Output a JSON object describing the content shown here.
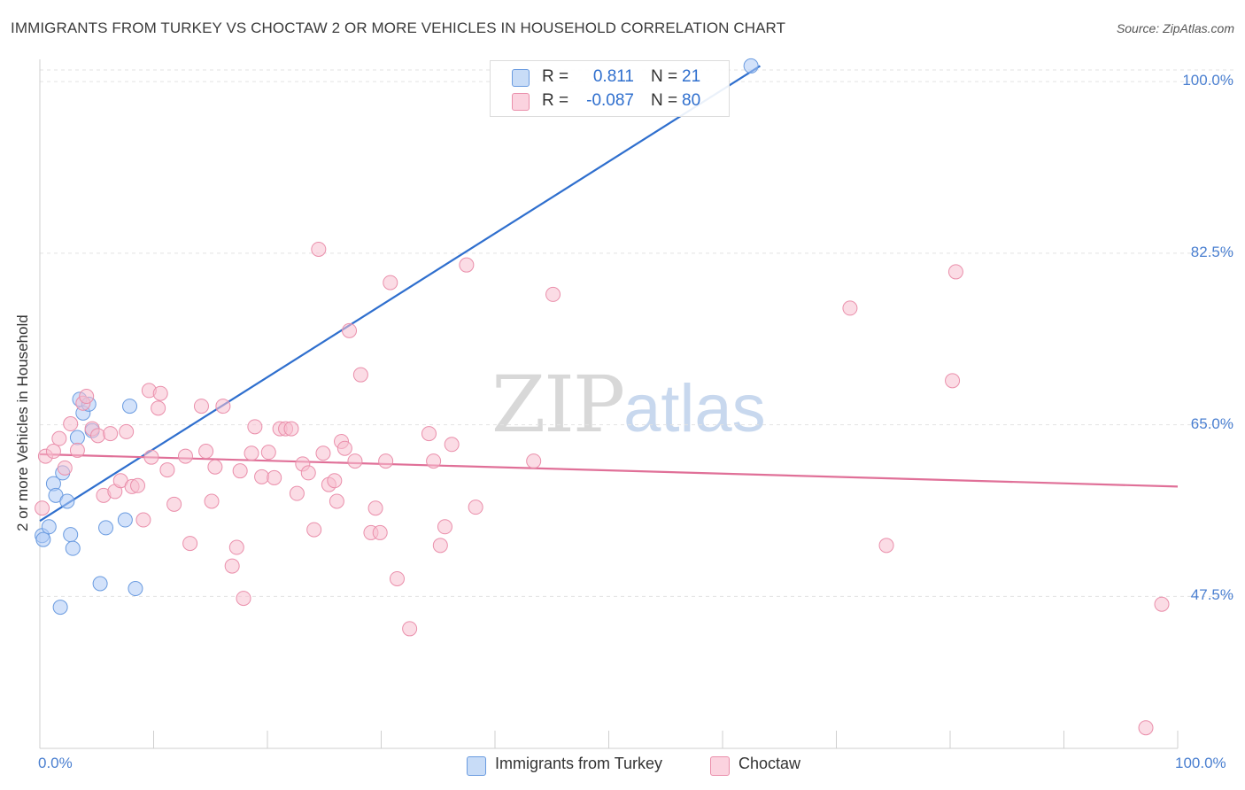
{
  "title": "IMMIGRANTS FROM TURKEY VS CHOCTAW 2 OR MORE VEHICLES IN HOUSEHOLD CORRELATION CHART",
  "source": "Source: ZipAtlas.com",
  "watermark": {
    "zip": "ZIP",
    "atlas": "atlas"
  },
  "legend_top": [
    {
      "r_label": "R =",
      "r_value": "0.811",
      "n_label": "N =",
      "n_value": "21",
      "color": "#aecbf5"
    },
    {
      "r_label": "R =",
      "r_value": "-0.087",
      "n_label": "N =",
      "n_value": "80",
      "color": "#f8bfd0"
    }
  ],
  "legend_bottom": [
    {
      "label": "Immigrants from Turkey",
      "color": "#aecbf5"
    },
    {
      "label": "Choctaw",
      "color": "#f8bfd0"
    }
  ],
  "chart_data": {
    "type": "scatter",
    "title": "IMMIGRANTS FROM TURKEY VS CHOCTAW 2 OR MORE VEHICLES IN HOUSEHOLD CORRELATION CHART",
    "xlabel": "",
    "ylabel": "2 or more Vehicles in Household",
    "xlim": [
      0,
      100
    ],
    "ylim": [
      32,
      102
    ],
    "x_tick_labels": [
      "0.0%",
      "100.0%"
    ],
    "y_tick_labels": [
      "100.0%",
      "82.5%",
      "65.0%",
      "47.5%"
    ],
    "y_ticks": [
      100,
      82.5,
      65,
      47.5
    ],
    "grid": true,
    "series": [
      {
        "name": "Immigrants from Turkey",
        "color": "#aecbf5",
        "stroke": "#6a9be0",
        "trend_color": "#2f6fce",
        "trend": [
          [
            0,
            55.2
          ],
          [
            63.3,
            101.6
          ]
        ],
        "points": [
          [
            0.2,
            53.7
          ],
          [
            0.3,
            53.3
          ],
          [
            0.8,
            54.6
          ],
          [
            1.2,
            59.0
          ],
          [
            1.4,
            57.8
          ],
          [
            1.8,
            46.4
          ],
          [
            2.0,
            60.1
          ],
          [
            2.4,
            57.2
          ],
          [
            2.7,
            53.8
          ],
          [
            2.9,
            52.4
          ],
          [
            3.3,
            63.7
          ],
          [
            3.5,
            67.6
          ],
          [
            3.8,
            66.2
          ],
          [
            4.3,
            67.1
          ],
          [
            4.6,
            64.4
          ],
          [
            5.3,
            48.8
          ],
          [
            5.8,
            54.5
          ],
          [
            7.5,
            55.3
          ],
          [
            7.9,
            66.9
          ],
          [
            8.4,
            48.3
          ],
          [
            62.5,
            101.6
          ]
        ]
      },
      {
        "name": "Choctaw",
        "color": "#f8bfd0",
        "stroke": "#ea8fab",
        "trend_color": "#e07098",
        "trend": [
          [
            0,
            62.0
          ],
          [
            100,
            58.7
          ]
        ],
        "points": [
          [
            0.2,
            56.5
          ],
          [
            0.5,
            61.8
          ],
          [
            1.2,
            62.3
          ],
          [
            1.7,
            63.6
          ],
          [
            2.2,
            60.6
          ],
          [
            2.7,
            65.1
          ],
          [
            3.3,
            62.4
          ],
          [
            3.8,
            67.2
          ],
          [
            4.1,
            67.9
          ],
          [
            4.6,
            64.6
          ],
          [
            5.1,
            63.9
          ],
          [
            5.6,
            57.8
          ],
          [
            6.2,
            64.1
          ],
          [
            6.6,
            58.2
          ],
          [
            7.1,
            59.3
          ],
          [
            7.6,
            64.3
          ],
          [
            8.1,
            58.7
          ],
          [
            8.6,
            58.8
          ],
          [
            9.1,
            55.3
          ],
          [
            9.6,
            68.5
          ],
          [
            9.8,
            61.7
          ],
          [
            10.4,
            66.7
          ],
          [
            10.6,
            68.2
          ],
          [
            11.2,
            60.4
          ],
          [
            11.8,
            56.9
          ],
          [
            12.8,
            61.8
          ],
          [
            13.2,
            52.9
          ],
          [
            14.2,
            66.9
          ],
          [
            14.6,
            62.3
          ],
          [
            15.1,
            57.2
          ],
          [
            15.4,
            60.7
          ],
          [
            16.1,
            66.9
          ],
          [
            16.9,
            50.6
          ],
          [
            17.3,
            52.5
          ],
          [
            17.6,
            60.3
          ],
          [
            17.9,
            47.3
          ],
          [
            18.6,
            62.1
          ],
          [
            18.9,
            64.8
          ],
          [
            19.5,
            59.7
          ],
          [
            20.1,
            62.2
          ],
          [
            20.6,
            59.6
          ],
          [
            21.1,
            64.6
          ],
          [
            21.6,
            64.6
          ],
          [
            22.1,
            64.6
          ],
          [
            22.6,
            58.0
          ],
          [
            23.1,
            61.0
          ],
          [
            23.6,
            60.1
          ],
          [
            24.1,
            54.3
          ],
          [
            24.5,
            82.9
          ],
          [
            24.9,
            62.1
          ],
          [
            25.4,
            58.9
          ],
          [
            25.9,
            59.3
          ],
          [
            26.1,
            57.2
          ],
          [
            26.5,
            63.3
          ],
          [
            26.8,
            62.6
          ],
          [
            27.2,
            74.6
          ],
          [
            27.7,
            61.3
          ],
          [
            28.2,
            70.1
          ],
          [
            29.1,
            54.0
          ],
          [
            29.5,
            56.5
          ],
          [
            29.9,
            54.0
          ],
          [
            30.4,
            61.3
          ],
          [
            30.8,
            79.5
          ],
          [
            31.4,
            49.3
          ],
          [
            32.5,
            44.2
          ],
          [
            34.2,
            64.1
          ],
          [
            34.6,
            61.3
          ],
          [
            35.2,
            52.7
          ],
          [
            35.6,
            54.6
          ],
          [
            36.2,
            63.0
          ],
          [
            37.5,
            81.3
          ],
          [
            38.3,
            56.6
          ],
          [
            43.4,
            61.3
          ],
          [
            45.1,
            78.3
          ],
          [
            71.2,
            76.9
          ],
          [
            74.4,
            52.7
          ],
          [
            80.2,
            69.5
          ],
          [
            80.5,
            80.6
          ],
          [
            98.6,
            46.7
          ],
          [
            97.2,
            34.1
          ]
        ]
      }
    ]
  }
}
